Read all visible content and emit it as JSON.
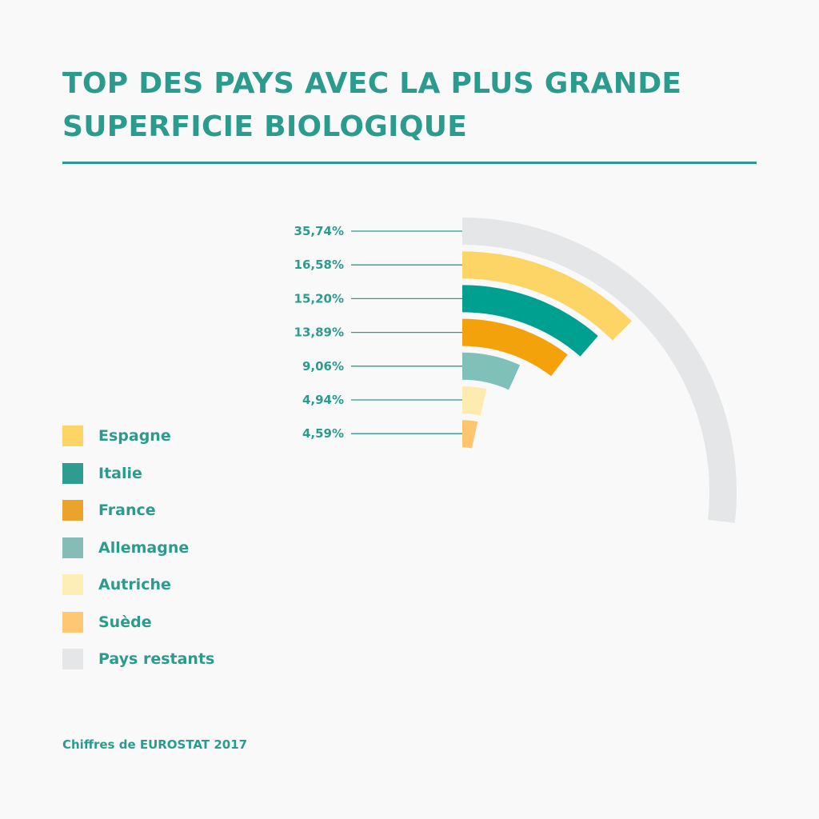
{
  "title": "TOP DES PAYS AVEC LA PLUS GRANDE SUPERFICIE BIOLOGIQUE",
  "source": "Chiffres de EUROSTAT 2017",
  "chart_data": {
    "type": "radial-bar",
    "unit": "%",
    "series": [
      {
        "name": "Pays restants",
        "value": 35.74,
        "label": "35,74%",
        "color": "#e5e6e7"
      },
      {
        "name": "Espagne",
        "value": 16.58,
        "label": "16,58%",
        "color": "#fdd567"
      },
      {
        "name": "Italie",
        "value": 15.2,
        "label": "15,20%",
        "color": "#00a091"
      },
      {
        "name": "France",
        "value": 13.89,
        "label": "13,89%",
        "color": "#f4a20c"
      },
      {
        "name": "Allemagne",
        "value": 9.06,
        "label": "9,06%",
        "color": "#7fc1b9"
      },
      {
        "name": "Autriche",
        "value": 4.94,
        "label": "4,94%",
        "color": "#fdebb0"
      },
      {
        "name": "Suède",
        "value": 4.59,
        "label": "4,59%",
        "color": "#fec56f"
      }
    ],
    "legend": [
      {
        "label": "Espagne",
        "color": "#fdd567"
      },
      {
        "label": "Italie",
        "color": "#2e9c8f"
      },
      {
        "label": "France",
        "color": "#eaa42c"
      },
      {
        "label": "Allemagne",
        "color": "#86bcb5"
      },
      {
        "label": "Autriche",
        "color": "#fdedb6"
      },
      {
        "label": "Suède",
        "color": "#fec774"
      },
      {
        "label": "Pays restants",
        "color": "#e5e6e7"
      }
    ],
    "legend_position": "left"
  }
}
